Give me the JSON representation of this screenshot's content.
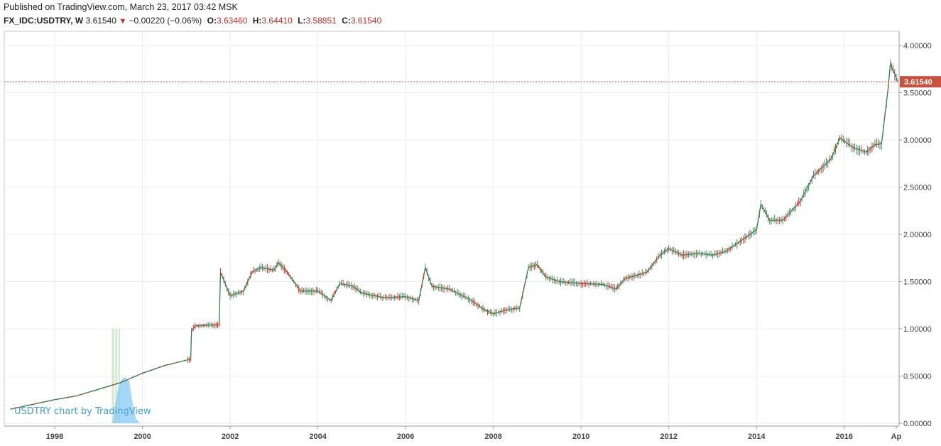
{
  "header": {
    "published": "Published on TradingView.com, March 23, 2017 03:42 MSK"
  },
  "legend": {
    "symbol": "FX_IDC:USDTRY, W",
    "last": "3.61540",
    "change": "−0.00220 (−0.06%)",
    "open_label": "O:",
    "open": "3.63460",
    "high_label": "H:",
    "high": "3.64410",
    "low_label": "L:",
    "low": "3.58851",
    "close_label": "C:",
    "close": "3.61540"
  },
  "watermark": "USDTRY chart by TradingView",
  "colors": {
    "line": "#2e7d52",
    "up": "#4a8a5c",
    "down": "#b5463d",
    "price_tag": "#c8523f",
    "grid": "#ececec",
    "volume_profile": "#7fc8f5",
    "volume_bars": "#b9d8b0"
  },
  "chart_data": {
    "type": "line",
    "title": "",
    "xlabel": "",
    "ylabel": "",
    "x_tick_labels": [
      "1998",
      "2000",
      "2002",
      "2004",
      "2006",
      "2008",
      "2010",
      "2012",
      "2014",
      "2016",
      "Ap"
    ],
    "y_tick_labels": [
      "0.00000",
      "0.50000",
      "1.00000",
      "1.50000",
      "2.00000",
      "2.50000",
      "3.00000",
      "3.50000",
      "4.00000"
    ],
    "ylim": [
      0,
      4
    ],
    "xlim": [
      1996.85,
      2017.25
    ],
    "last_price_label": "3.61540",
    "last_price": 3.6154,
    "grid": true,
    "series": [
      {
        "x": [
          1997.0,
          1997.5,
          1998.0,
          1998.5,
          1999.0,
          1999.5,
          2000.0,
          2000.5,
          2001.1,
          2001.12,
          2001.2,
          2001.5,
          2001.75,
          2001.78,
          2002.0,
          2002.3,
          2002.5,
          2002.7,
          2003.0,
          2003.1,
          2003.3,
          2003.6,
          2004.0,
          2004.3,
          2004.5,
          2004.8,
          2005.0,
          2005.5,
          2006.0,
          2006.3,
          2006.45,
          2006.6,
          2007.0,
          2007.5,
          2007.8,
          2008.0,
          2008.3,
          2008.6,
          2008.8,
          2009.0,
          2009.2,
          2009.5,
          2010.0,
          2010.5,
          2010.8,
          2011.0,
          2011.5,
          2011.8,
          2012.0,
          2012.3,
          2012.7,
          2013.0,
          2013.3,
          2013.7,
          2014.0,
          2014.1,
          2014.3,
          2014.6,
          2015.0,
          2015.3,
          2015.7,
          2015.9,
          2016.2,
          2016.5,
          2016.7,
          2016.85,
          2017.0,
          2017.05,
          2017.15,
          2017.22
        ],
        "values": [
          0.15,
          0.2,
          0.25,
          0.29,
          0.36,
          0.43,
          0.53,
          0.61,
          0.68,
          0.98,
          1.03,
          1.04,
          1.04,
          1.6,
          1.35,
          1.4,
          1.6,
          1.65,
          1.62,
          1.7,
          1.6,
          1.4,
          1.4,
          1.3,
          1.48,
          1.45,
          1.38,
          1.33,
          1.34,
          1.3,
          1.65,
          1.45,
          1.42,
          1.3,
          1.2,
          1.16,
          1.2,
          1.22,
          1.65,
          1.68,
          1.55,
          1.5,
          1.48,
          1.47,
          1.42,
          1.53,
          1.6,
          1.78,
          1.85,
          1.78,
          1.8,
          1.78,
          1.82,
          1.95,
          2.05,
          2.32,
          2.15,
          2.15,
          2.35,
          2.62,
          2.8,
          3.02,
          2.92,
          2.87,
          2.95,
          2.96,
          3.55,
          3.8,
          3.7,
          3.62
        ]
      }
    ]
  }
}
